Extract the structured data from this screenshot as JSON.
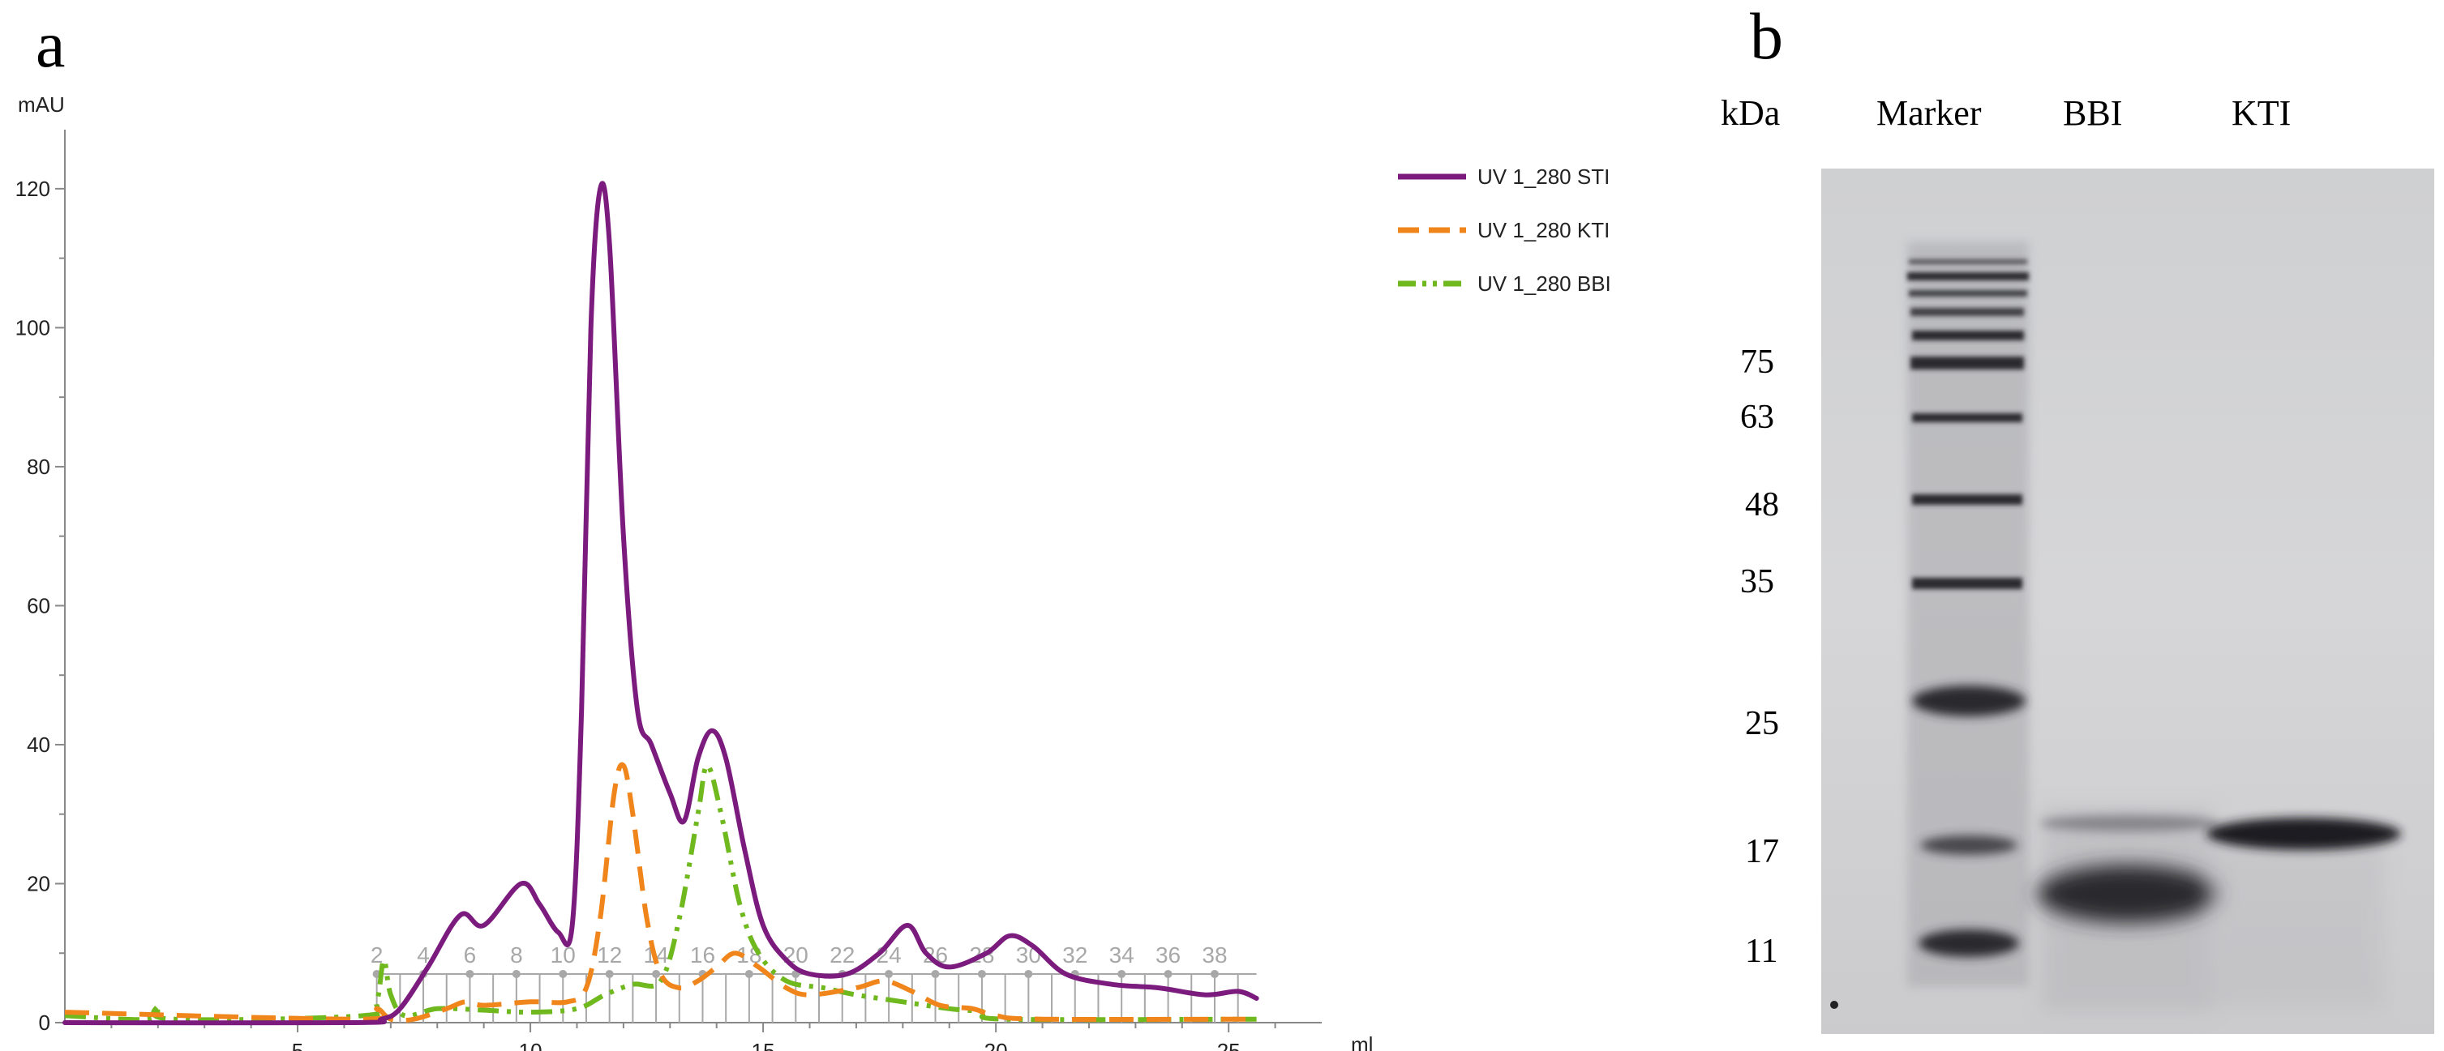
{
  "panel_a": {
    "label": "a",
    "chart_data": {
      "type": "line",
      "xlabel": "ml",
      "ylabel": "mAU",
      "xlim": [
        0,
        27
      ],
      "ylim": [
        0,
        125
      ],
      "x_ticks": [
        5,
        10,
        15,
        20,
        25
      ],
      "y_ticks": [
        0,
        20,
        40,
        60,
        80,
        100,
        120
      ],
      "legend_position": "top-right",
      "series": [
        {
          "name": "UV 1_280 STI",
          "color": "#7b1b7e",
          "dash": "solid",
          "points": [
            [
              0,
              0
            ],
            [
              6.2,
              0
            ],
            [
              6.8,
              0.5
            ],
            [
              7.2,
              2
            ],
            [
              7.8,
              8
            ],
            [
              8.5,
              15.5
            ],
            [
              9,
              14
            ],
            [
              9.8,
              20
            ],
            [
              10.2,
              17
            ],
            [
              10.6,
              13
            ],
            [
              10.9,
              14
            ],
            [
              11.1,
              45
            ],
            [
              11.3,
              100
            ],
            [
              11.5,
              120
            ],
            [
              11.7,
              112
            ],
            [
              12.0,
              70
            ],
            [
              12.3,
              45
            ],
            [
              12.6,
              40
            ],
            [
              13.0,
              33
            ],
            [
              13.3,
              29
            ],
            [
              13.6,
              38
            ],
            [
              13.9,
              42
            ],
            [
              14.2,
              38
            ],
            [
              14.6,
              25
            ],
            [
              15.0,
              14
            ],
            [
              15.5,
              9
            ],
            [
              16,
              7
            ],
            [
              16.8,
              7
            ],
            [
              17.5,
              10
            ],
            [
              18.1,
              14
            ],
            [
              18.5,
              10
            ],
            [
              19,
              8
            ],
            [
              19.8,
              10
            ],
            [
              20.3,
              12.5
            ],
            [
              20.8,
              11
            ],
            [
              21.5,
              7
            ],
            [
              22.5,
              5.5
            ],
            [
              23.5,
              5
            ],
            [
              24.5,
              4
            ],
            [
              25.2,
              4.5
            ],
            [
              25.6,
              3.5
            ]
          ]
        },
        {
          "name": "UV 1_280 KTI",
          "color": "#f0861b",
          "dash": "dashed",
          "points": [
            [
              0,
              1.5
            ],
            [
              6.4,
              0.5
            ],
            [
              6.7,
              2
            ],
            [
              7.0,
              0.5
            ],
            [
              7.5,
              0.5
            ],
            [
              8.2,
              2
            ],
            [
              8.6,
              3
            ],
            [
              9.0,
              2.5
            ],
            [
              10,
              3
            ],
            [
              10.8,
              3
            ],
            [
              11.2,
              5
            ],
            [
              11.5,
              15
            ],
            [
              11.8,
              33
            ],
            [
              12.0,
              37
            ],
            [
              12.2,
              30
            ],
            [
              12.5,
              15
            ],
            [
              12.8,
              7
            ],
            [
              13.2,
              5
            ],
            [
              13.6,
              6
            ],
            [
              14.0,
              8
            ],
            [
              14.4,
              10
            ],
            [
              14.9,
              8
            ],
            [
              15.5,
              5
            ],
            [
              16,
              4
            ],
            [
              17,
              5
            ],
            [
              17.6,
              6
            ],
            [
              18.2,
              4.5
            ],
            [
              18.8,
              2.5
            ],
            [
              19.5,
              2
            ],
            [
              20,
              1
            ],
            [
              21,
              0.5
            ],
            [
              25.6,
              0.5
            ]
          ]
        },
        {
          "name": "UV 1_280 BBI",
          "color": "#6fb81e",
          "dash": "dash-dot",
          "points": [
            [
              0,
              1
            ],
            [
              1.8,
              0.5
            ],
            [
              2.0,
              2.5
            ],
            [
              2.3,
              0.5
            ],
            [
              6.4,
              1
            ],
            [
              6.7,
              3
            ],
            [
              6.85,
              9
            ],
            [
              7.0,
              4
            ],
            [
              7.3,
              1
            ],
            [
              8,
              2
            ],
            [
              9,
              1.8
            ],
            [
              10,
              1.5
            ],
            [
              11,
              2
            ],
            [
              11.6,
              4
            ],
            [
              12.2,
              5.5
            ],
            [
              12.8,
              6
            ],
            [
              13.2,
              15
            ],
            [
              13.6,
              30
            ],
            [
              13.8,
              37
            ],
            [
              14.1,
              30
            ],
            [
              14.5,
              17
            ],
            [
              14.9,
              10
            ],
            [
              15.5,
              6
            ],
            [
              16.3,
              5
            ],
            [
              17,
              4
            ],
            [
              18,
              3
            ],
            [
              19,
              2
            ],
            [
              19.8,
              1.5
            ],
            [
              20.2,
              0.5
            ],
            [
              25.6,
              0.5
            ]
          ]
        }
      ],
      "fraction_labels": [
        "2",
        "4",
        "6",
        "8",
        "10",
        "12",
        "14",
        "16",
        "18",
        "20",
        "22",
        "24",
        "26",
        "28",
        "30",
        "32",
        "34",
        "36",
        "38"
      ],
      "fraction_start_ml": 6.7,
      "fraction_step_ml": 1.0,
      "fraction_end_ml": 25.6
    }
  },
  "panel_b": {
    "label": "b",
    "unit_label": "kDa",
    "lanes": [
      "Marker",
      "BBI",
      "KTI"
    ],
    "marker_weights": [
      "75",
      "63",
      "48",
      "35",
      "25",
      "17",
      "11"
    ]
  },
  "colors": {
    "axis": "#888888",
    "tick_text": "#222222",
    "fraction": "#a8a8a8",
    "gel_bg": "#d2d2d3",
    "band": "#2b2b2e"
  }
}
